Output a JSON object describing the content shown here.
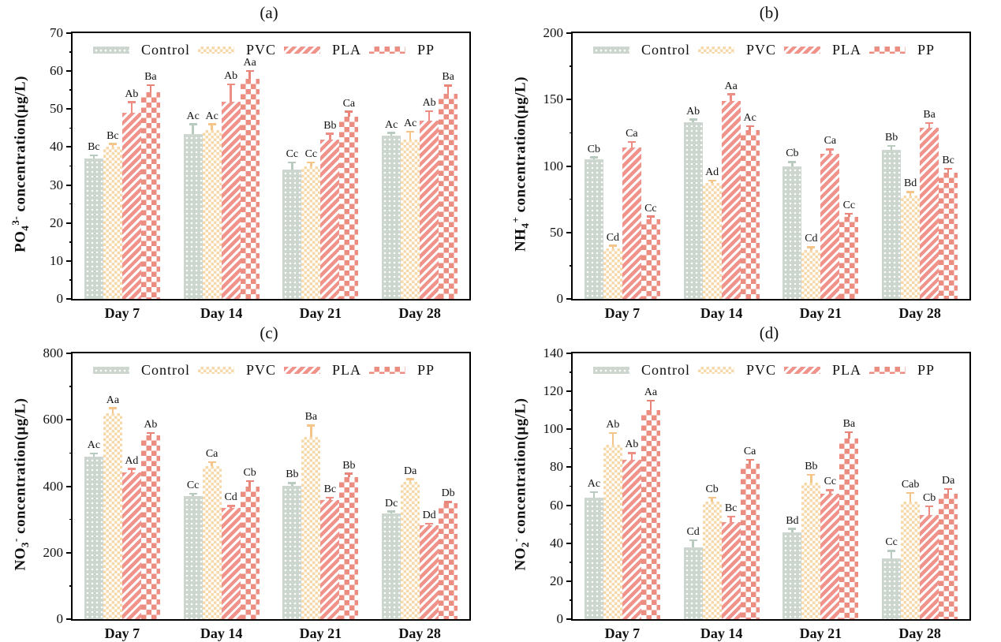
{
  "legend": {
    "items": [
      {
        "key": "control",
        "label": "Control"
      },
      {
        "key": "pvc",
        "label": "PVC"
      },
      {
        "key": "pla",
        "label": "PLA"
      },
      {
        "key": "pp",
        "label": "PP"
      }
    ]
  },
  "colors": {
    "background": "#ffffff",
    "axis": "#000000",
    "annotation": "#111111",
    "control_fill": "#ccd6ce",
    "pvc_fill": "#f7d8aa",
    "pla_fill": "#f0938a",
    "pp_fill": "#ec8d82",
    "control_error": "#b9cabf",
    "pvc_error": "#f4c488",
    "pla_error": "#ee8d83",
    "pp_error": "#e98578"
  },
  "chart_data": [
    {
      "type": "bar",
      "panel_label": "(a)",
      "ylabel": {
        "base": "PO",
        "sub": "4",
        "sup": "3-",
        "rest": " concentration(µg/L)"
      },
      "ylim": [
        0,
        70
      ],
      "yticks": [
        0,
        10,
        20,
        30,
        40,
        50,
        60,
        70
      ],
      "grid": false,
      "legend_position": "top-inside",
      "categories": [
        "Day 7",
        "Day 14",
        "Day 21",
        "Day 28"
      ],
      "series": [
        {
          "key": "control",
          "name": "Control",
          "values": [
            37,
            43.5,
            34,
            43
          ],
          "errors": [
            0.8,
            2.5,
            2,
            0.7
          ],
          "sig_labels": [
            "Bc",
            "Ac",
            "Cc",
            "Ac"
          ]
        },
        {
          "key": "pvc",
          "name": "PVC",
          "values": [
            40,
            44.5,
            35,
            42
          ],
          "errors": [
            0.8,
            1.5,
            1,
            2
          ],
          "sig_labels": [
            "Bc",
            "Ac",
            "Cc",
            "Ac"
          ]
        },
        {
          "key": "pla",
          "name": "PLA",
          "values": [
            49,
            52,
            42,
            47
          ],
          "errors": [
            2.8,
            4.5,
            1.5,
            2.5
          ],
          "sig_labels": [
            "Ab",
            "Ab",
            "Bb",
            "Ab"
          ]
        },
        {
          "key": "pp",
          "name": "PP",
          "values": [
            54.5,
            58,
            48,
            54
          ],
          "errors": [
            1.8,
            2,
            1.3,
            2.2
          ],
          "sig_labels": [
            "Ba",
            "Aa",
            "Ca",
            "Ba"
          ]
        }
      ]
    },
    {
      "type": "bar",
      "panel_label": "(b)",
      "ylabel": {
        "base": "NH",
        "sub": "4",
        "sup": "+",
        "rest": " concentration(µg/L)"
      },
      "ylim": [
        0,
        200
      ],
      "yticks": [
        0,
        50,
        100,
        150,
        200
      ],
      "grid": false,
      "legend_position": "top-inside",
      "categories": [
        "Day 7",
        "Day 14",
        "Day 21",
        "Day 28"
      ],
      "series": [
        {
          "key": "control",
          "name": "Control",
          "values": [
            105,
            133,
            100,
            112
          ],
          "errors": [
            1.5,
            2,
            3,
            3
          ],
          "sig_labels": [
            "Cb",
            "Ab",
            "Cb",
            "Bb"
          ]
        },
        {
          "key": "pvc",
          "name": "PVC",
          "values": [
            38,
            87,
            37,
            78
          ],
          "errors": [
            2,
            2,
            2,
            2.5
          ],
          "sig_labels": [
            "Cd",
            "Ad",
            "Cd",
            "Bd"
          ]
        },
        {
          "key": "pla",
          "name": "PLA",
          "values": [
            114,
            149,
            109,
            129
          ],
          "errors": [
            4,
            5,
            3.5,
            3.5
          ],
          "sig_labels": [
            "Ca",
            "Aa",
            "Ca",
            "Ba"
          ]
        },
        {
          "key": "pp",
          "name": "PP",
          "values": [
            60,
            127,
            62,
            95
          ],
          "errors": [
            2,
            3,
            2,
            3
          ],
          "sig_labels": [
            "Cc",
            "Ac",
            "Cc",
            "Bc"
          ]
        }
      ]
    },
    {
      "type": "bar",
      "panel_label": "(c)",
      "ylabel": {
        "base": "NO",
        "sub": "3",
        "sup": "-",
        "rest": " concentration(µg/L)"
      },
      "ylim": [
        0,
        800
      ],
      "yticks": [
        0,
        200,
        400,
        600,
        800
      ],
      "grid": false,
      "legend_position": "top-inside",
      "categories": [
        "Day 7",
        "Day 14",
        "Day 21",
        "Day 28"
      ],
      "series": [
        {
          "key": "control",
          "name": "Control",
          "values": [
            490,
            370,
            402,
            318
          ],
          "errors": [
            8,
            8,
            8,
            6
          ],
          "sig_labels": [
            "Ac",
            "Cc",
            "Bb",
            "Dc"
          ]
        },
        {
          "key": "pvc",
          "name": "PVC",
          "values": [
            620,
            460,
            548,
            413
          ],
          "errors": [
            15,
            12,
            35,
            8
          ],
          "sig_labels": [
            "Aa",
            "Ca",
            "Ba",
            "Da"
          ]
        },
        {
          "key": "pla",
          "name": "PLA",
          "values": [
            442,
            335,
            358,
            282
          ],
          "errors": [
            10,
            6,
            8,
            6
          ],
          "sig_labels": [
            "Ad",
            "Cd",
            "Bc",
            "Dd"
          ]
        },
        {
          "key": "pp",
          "name": "PP",
          "values": [
            552,
            398,
            428,
            348
          ],
          "errors": [
            8,
            18,
            10,
            5
          ],
          "sig_labels": [
            "Ab",
            "Cb",
            "Bb",
            "Db"
          ]
        }
      ]
    },
    {
      "type": "bar",
      "panel_label": "(d)",
      "ylabel": {
        "base": "NO",
        "sub": "2",
        "sup": "-",
        "rest": " concentration(µg/L)"
      },
      "ylim": [
        0,
        140
      ],
      "yticks": [
        0,
        20,
        40,
        60,
        80,
        100,
        120,
        140
      ],
      "grid": false,
      "legend_position": "top-inside",
      "categories": [
        "Day 7",
        "Day 14",
        "Day 21",
        "Day 28"
      ],
      "series": [
        {
          "key": "control",
          "name": "Control",
          "values": [
            64,
            38,
            45.5,
            32
          ],
          "errors": [
            3,
            3.5,
            2,
            4
          ],
          "sig_labels": [
            "Ac",
            "Cd",
            "Bd",
            "Cc"
          ]
        },
        {
          "key": "pvc",
          "name": "PVC",
          "values": [
            92,
            62,
            72,
            62
          ],
          "errors": [
            6,
            2,
            4,
            4.5
          ],
          "sig_labels": [
            "Ab",
            "Cb",
            "Bb",
            "Cab"
          ]
        },
        {
          "key": "pla",
          "name": "PLA",
          "values": [
            84,
            51,
            66,
            55
          ],
          "errors": [
            3.5,
            3,
            2,
            4.5
          ],
          "sig_labels": [
            "Ab",
            "Bc",
            "Cc",
            "Cb"
          ]
        },
        {
          "key": "pp",
          "name": "PP",
          "values": [
            110,
            82,
            95,
            66
          ],
          "errors": [
            5,
            2,
            3.5,
            2.5
          ],
          "sig_labels": [
            "Aa",
            "Ca",
            "Ba",
            "Da"
          ]
        }
      ]
    }
  ]
}
